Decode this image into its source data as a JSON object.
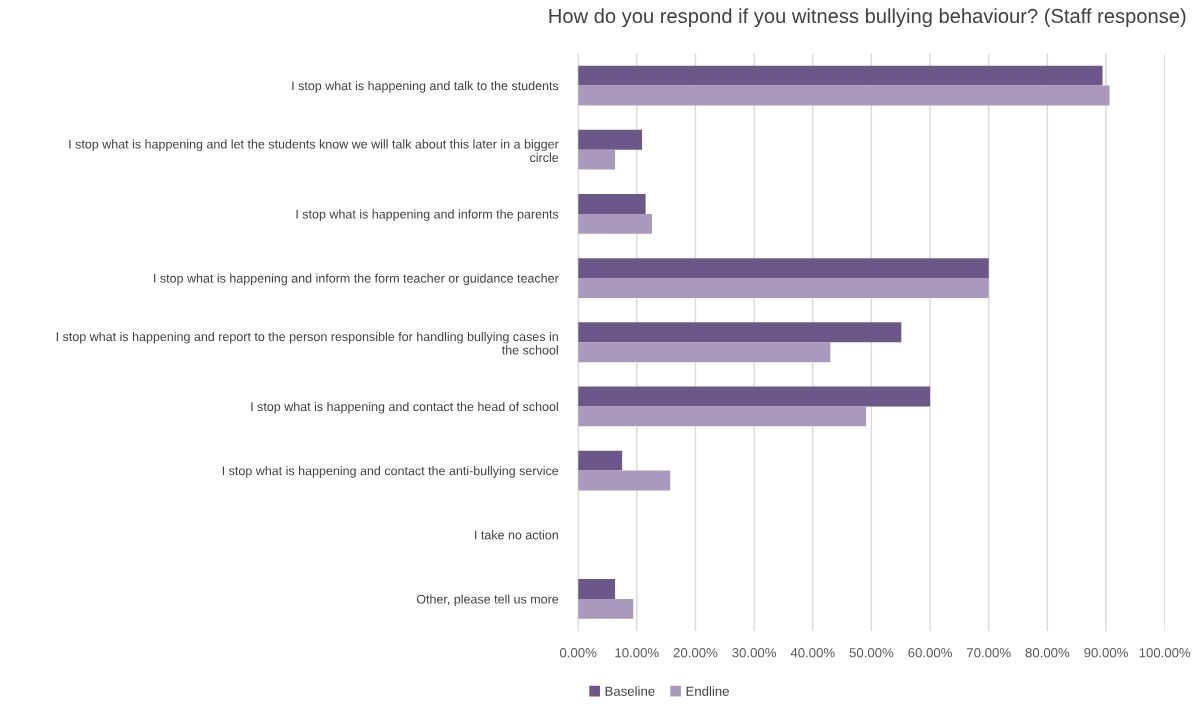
{
  "chart_data": {
    "type": "bar",
    "orientation": "horizontal",
    "title": "How do you respond if you witness bullying behaviour? (Staff response)",
    "categories": [
      "I stop what is happening and talk to the students",
      "I stop what is happening and let the students know we will talk about this later in a bigger circle",
      "I stop what is happening and inform the parents",
      "I stop what is happening and inform the form teacher or guidance teacher",
      "I stop what is happening and report to the person responsible for handling bullying cases in the school",
      "I stop what is happening and contact the head of school",
      "I stop what is happening and contact the anti-bullying service",
      "I take no action",
      "Other, please tell us more"
    ],
    "series": [
      {
        "name": "Baseline",
        "color": "#6b5788",
        "values": [
          89.4,
          10.9,
          11.5,
          70.0,
          55.1,
          60.0,
          7.5,
          0,
          6.3
        ]
      },
      {
        "name": "Endline",
        "color": "#a899bd",
        "values": [
          90.6,
          6.3,
          12.6,
          70.0,
          43.0,
          49.1,
          15.7,
          0,
          9.4
        ]
      }
    ],
    "xlim": [
      0,
      100
    ],
    "xticks": [
      {
        "value": 0,
        "label": "0.00%"
      },
      {
        "value": 10,
        "label": "10.00%"
      },
      {
        "value": 20,
        "label": "20.00%"
      },
      {
        "value": 30,
        "label": "30.00%"
      },
      {
        "value": 40,
        "label": "40.00%"
      },
      {
        "value": 50,
        "label": "50.00%"
      },
      {
        "value": 60,
        "label": "60.00%"
      },
      {
        "value": 70,
        "label": "70.00%"
      },
      {
        "value": 80,
        "label": "80.00%"
      },
      {
        "value": 90,
        "label": "90.00%"
      },
      {
        "value": 100,
        "label": "100.00%"
      }
    ],
    "grid": "x",
    "legend": "bottom"
  }
}
